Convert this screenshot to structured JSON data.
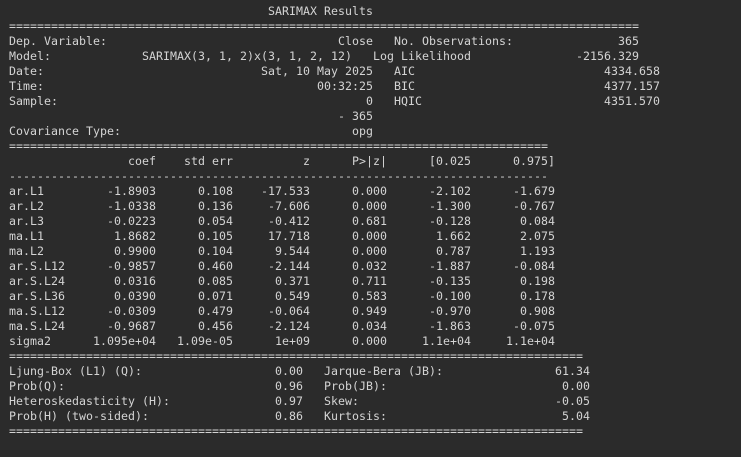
{
  "output": {
    "lines": [
      "                                     SARIMAX Results                                      ",
      "==========================================================================================",
      "Dep. Variable:                                 Close   No. Observations:               365",
      "Model:             SARIMAX(3, 1, 2)x(3, 1, 2, 12)   Log Likelihood               -2156.329",
      "Date:                               Sat, 10 May 2025   AIC                           4334.658",
      "Time:                                       00:32:25   BIC                           4377.157",
      "Sample:                                            0   HQIC                          4351.570",
      "                                               - 365                                      ",
      "Covariance Type:                                 opg                                      ",
      "=============================================================================",
      "                 coef    std err          z      P>|z|      [0.025      0.975]",
      "-----------------------------------------------------------------------------",
      "ar.L1         -1.8903      0.108    -17.533      0.000      -2.102      -1.679",
      "ar.L2         -1.0338      0.136     -7.606      0.000      -1.300      -0.767",
      "ar.L3         -0.0223      0.054     -0.412      0.681      -0.128       0.084",
      "ma.L1          1.8682      0.105     17.718      0.000       1.662       2.075",
      "ma.L2          0.9900      0.104      9.544      0.000       0.787       1.193",
      "ar.S.L12      -0.9857      0.460     -2.144      0.032      -1.887      -0.084",
      "ar.S.L24       0.0316      0.085      0.371      0.711      -0.135       0.198",
      "ar.S.L36       0.0390      0.071      0.549      0.583      -0.100       0.178",
      "ma.S.L12      -0.0309      0.479     -0.064      0.949      -0.970       0.908",
      "ma.S.L24      -0.9687      0.456     -2.124      0.034      -1.863      -0.075",
      "sigma2      1.095e+04   1.09e-05      1e+09      0.000     1.1e+04     1.1e+04",
      "==================================================================================",
      "Ljung-Box (L1) (Q):                   0.00   Jarque-Bera (JB):                61.34",
      "Prob(Q):                              0.96   Prob(JB):                         0.00",
      "Heteroskedasticity (H):               0.97   Skew:                            -0.05",
      "Prob(H) (two-sided):                  0.86   Kurtosis:                         5.04",
      "=================================================================================="
    ]
  }
}
